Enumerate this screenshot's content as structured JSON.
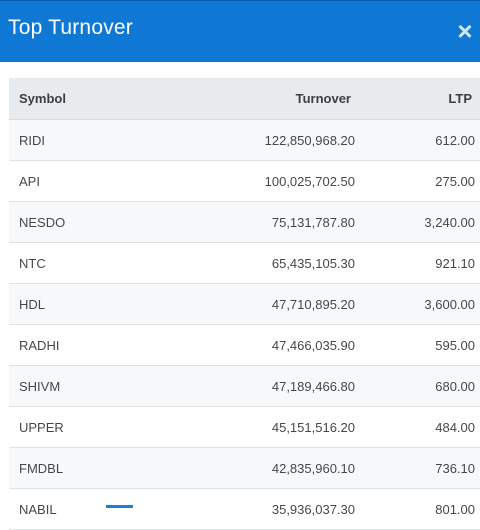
{
  "dialog": {
    "title": "Top Turnover",
    "close_label": "×"
  },
  "table": {
    "headers": {
      "symbol": "Symbol",
      "turnover": "Turnover",
      "ltp": "LTP"
    },
    "rows": [
      {
        "symbol": "RIDI",
        "turnover": "122,850,968.20",
        "ltp": "612.00"
      },
      {
        "symbol": "API",
        "turnover": "100,025,702.50",
        "ltp": "275.00"
      },
      {
        "symbol": "NESDO",
        "turnover": "75,131,787.80",
        "ltp": "3,240.00"
      },
      {
        "symbol": "NTC",
        "turnover": "65,435,105.30",
        "ltp": "921.10"
      },
      {
        "symbol": "HDL",
        "turnover": "47,710,895.20",
        "ltp": "3,600.00"
      },
      {
        "symbol": "RADHI",
        "turnover": "47,466,035.90",
        "ltp": "595.00"
      },
      {
        "symbol": "SHIVM",
        "turnover": "47,189,466.80",
        "ltp": "680.00"
      },
      {
        "symbol": "UPPER",
        "turnover": "45,151,516.20",
        "ltp": "484.00"
      },
      {
        "symbol": "FMDBL",
        "turnover": "42,835,960.10",
        "ltp": "736.10"
      },
      {
        "symbol": "NABIL",
        "turnover": "35,936,037.30",
        "ltp": "801.00"
      }
    ]
  },
  "colors": {
    "header_bg": "#0f78d4",
    "accent": "#1a7fd6"
  }
}
